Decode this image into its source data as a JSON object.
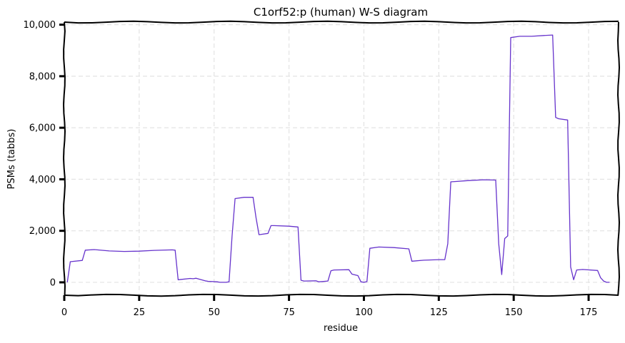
{
  "chart_data": {
    "type": "line",
    "title": "C1orf52:p (human) W-S diagram",
    "xlabel": "residue",
    "ylabel": "PSMs (tabbs)",
    "xlim": [
      0,
      185
    ],
    "ylim": [
      -500,
      10100
    ],
    "xticks": [
      0,
      25,
      50,
      75,
      100,
      125,
      150,
      175
    ],
    "xtick_labels": [
      "0",
      "25",
      "50",
      "75",
      "100",
      "125",
      "150",
      "175"
    ],
    "yticks": [
      0,
      2000,
      4000,
      6000,
      8000,
      10000
    ],
    "ytick_labels": [
      "0",
      "2,000",
      "4,000",
      "6,000",
      "8,000",
      "10,000"
    ],
    "grid": true,
    "series": [
      {
        "color": "#6633cc",
        "x": [
          1,
          2,
          6,
          7,
          10,
          15,
          20,
          25,
          30,
          36,
          37,
          38,
          42,
          43,
          44,
          47,
          48,
          51,
          52,
          54,
          55,
          56,
          57,
          60,
          63,
          64,
          65,
          68,
          69,
          70,
          75,
          78,
          79,
          80,
          84,
          85,
          88,
          89,
          90,
          95,
          96,
          98,
          99,
          100,
          101,
          102,
          105,
          110,
          115,
          116,
          120,
          125,
          127,
          128,
          129,
          135,
          140,
          144,
          145,
          146,
          147,
          148,
          149,
          152,
          156,
          160,
          163,
          164,
          165,
          168,
          169,
          170,
          171,
          173,
          178,
          179,
          180,
          181,
          182
        ],
        "y": [
          0,
          800,
          850,
          1250,
          1270,
          1220,
          1200,
          1210,
          1240,
          1260,
          1250,
          100,
          150,
          140,
          160,
          60,
          40,
          20,
          0,
          0,
          20,
          1800,
          3250,
          3300,
          3300,
          2500,
          1850,
          1900,
          2200,
          2200,
          2180,
          2150,
          80,
          50,
          60,
          20,
          50,
          450,
          480,
          490,
          320,
          260,
          20,
          0,
          30,
          1320,
          1370,
          1350,
          1300,
          820,
          860,
          880,
          880,
          1500,
          3900,
          3950,
          3980,
          3970,
          1500,
          300,
          1700,
          1800,
          9500,
          9550,
          9550,
          9580,
          9600,
          6400,
          6350,
          6300,
          600,
          100,
          480,
          500,
          460,
          180,
          50,
          0,
          0
        ]
      }
    ]
  }
}
